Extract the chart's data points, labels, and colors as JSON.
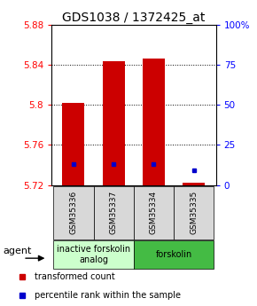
{
  "title": "GDS1038 / 1372425_at",
  "samples": [
    "GSM35336",
    "GSM35337",
    "GSM35334",
    "GSM35335"
  ],
  "red_values": [
    5.802,
    5.843,
    5.846,
    5.722
  ],
  "blue_percentiles": [
    0.13,
    0.13,
    0.13,
    0.09
  ],
  "ymin": 5.72,
  "ymax": 5.88,
  "yticks_left": [
    5.72,
    5.76,
    5.8,
    5.84,
    5.88
  ],
  "yticks_right": [
    0,
    25,
    50,
    75,
    100
  ],
  "bar_color": "#cc0000",
  "blue_color": "#0000cc",
  "bar_width": 0.55,
  "group1_label": "inactive forskolin\nanalog",
  "group2_label": "forskolin",
  "group1_color": "#ccffcc",
  "group2_color": "#44bb44",
  "agent_label": "agent",
  "legend_items": [
    {
      "label": "transformed count",
      "color": "#cc0000"
    },
    {
      "label": "percentile rank within the sample",
      "color": "#0000cc"
    }
  ],
  "title_fontsize": 10,
  "tick_fontsize": 7.5,
  "sample_fontsize": 6.5,
  "legend_fontsize": 7,
  "group_fontsize": 7,
  "agent_fontsize": 8
}
